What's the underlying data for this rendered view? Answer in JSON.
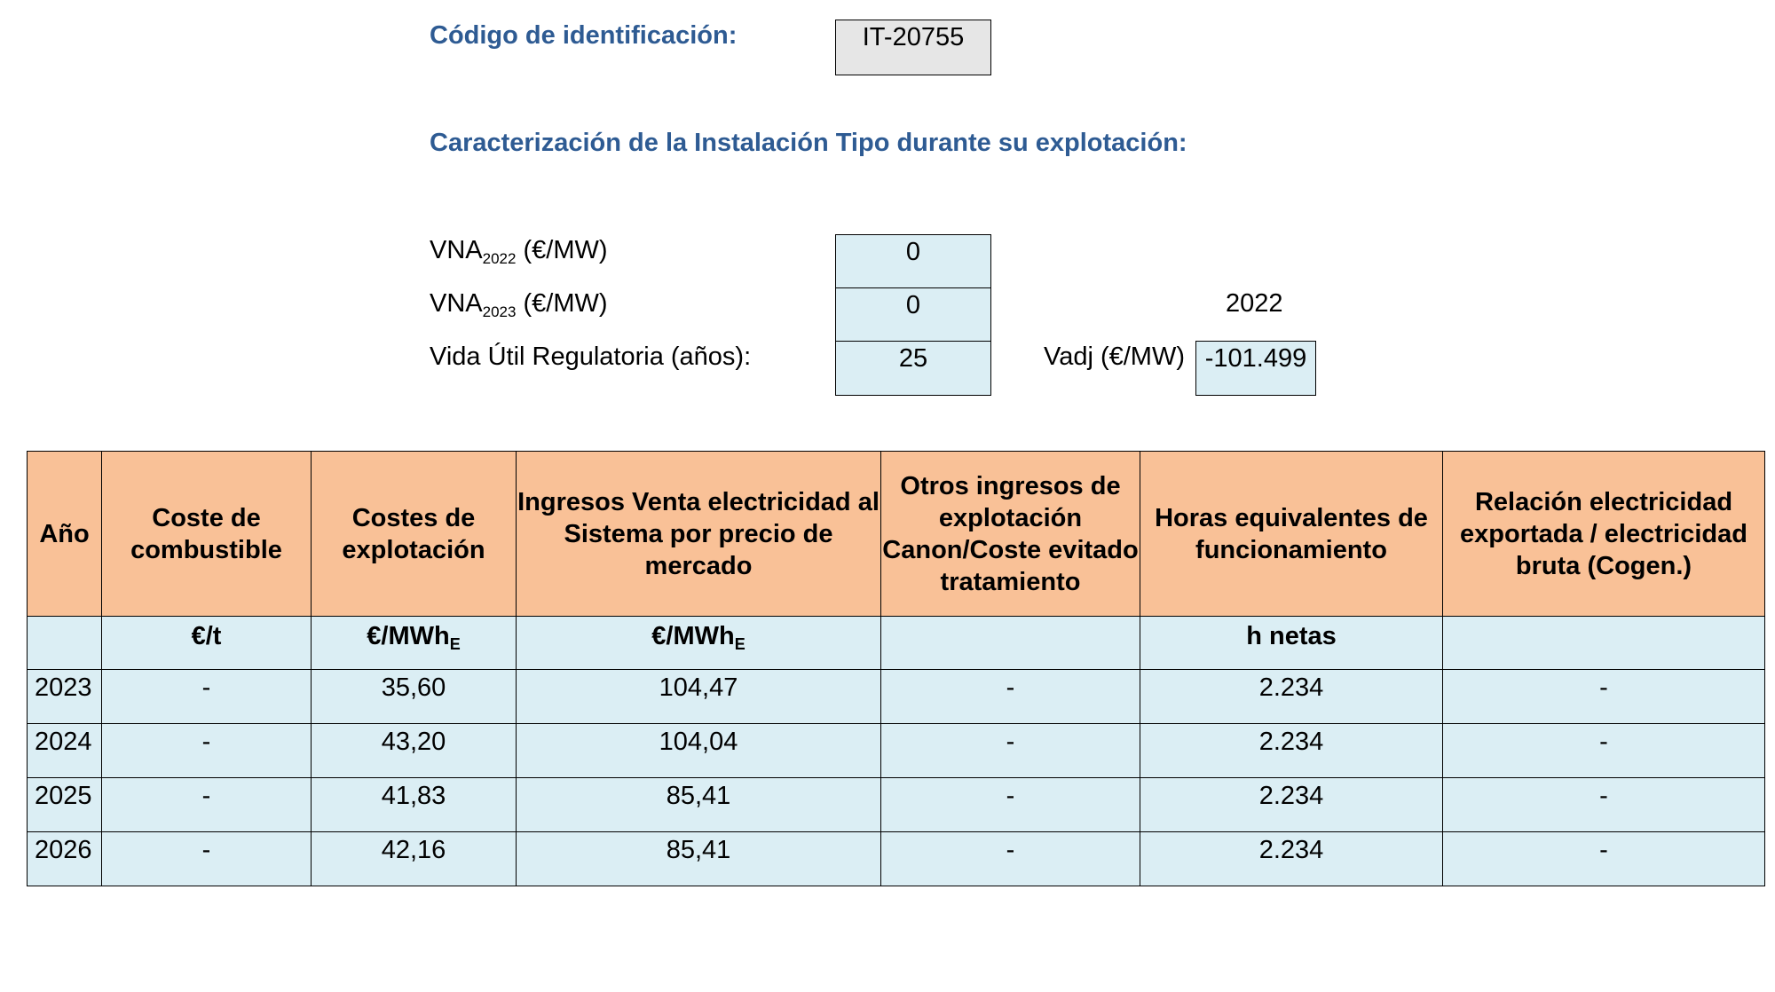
{
  "header": {
    "id_label": "Código de identificación:",
    "id_value": "IT-20755",
    "subtitle": "Caracterización de la Instalación Tipo durante su explotación:"
  },
  "params": {
    "vna2022": {
      "label_main": "VNA",
      "label_sub": "2022",
      "label_unit": " (€/MW)",
      "value": "0"
    },
    "vna2023": {
      "label_main": "VNA",
      "label_sub": "2023",
      "label_unit": " (€/MW)",
      "value": "0"
    },
    "vida_util": {
      "label": "Vida Útil Regulatoria (años):",
      "value": "25"
    },
    "year_note": "2022",
    "vadj": {
      "label": "Vadj (€/MW)",
      "value": "-101.499"
    }
  },
  "table": {
    "headers": [
      "Año",
      "Coste de combustible",
      "Costes de explotación",
      "Ingresos Venta electricidad al Sistema por precio de mercado",
      "Otros ingresos de explotación Canon/Coste evitado tratamiento",
      "Horas equivalentes de funcionamiento",
      "Relación electricidad exportada / electricidad bruta (Cogen.)"
    ],
    "units": {
      "combustible": "€/t",
      "explotacion_main": "€/MWh",
      "explotacion_sub": "E",
      "ingresos_main": "€/MWh",
      "ingresos_sub": "E",
      "horas": "h netas"
    },
    "rows": [
      {
        "year": "2023",
        "combustible": "-",
        "explotacion": "35,60",
        "ingresos": "104,47",
        "otros": "-",
        "horas": "2.234",
        "relacion": "-"
      },
      {
        "year": "2024",
        "combustible": "-",
        "explotacion": "43,20",
        "ingresos": "104,04",
        "otros": "-",
        "horas": "2.234",
        "relacion": "-"
      },
      {
        "year": "2025",
        "combustible": "-",
        "explotacion": "41,83",
        "ingresos": "85,41",
        "otros": "-",
        "horas": "2.234",
        "relacion": "-"
      },
      {
        "year": "2026",
        "combustible": "-",
        "explotacion": "42,16",
        "ingresos": "85,41",
        "otros": "-",
        "horas": "2.234",
        "relacion": "-"
      }
    ]
  }
}
